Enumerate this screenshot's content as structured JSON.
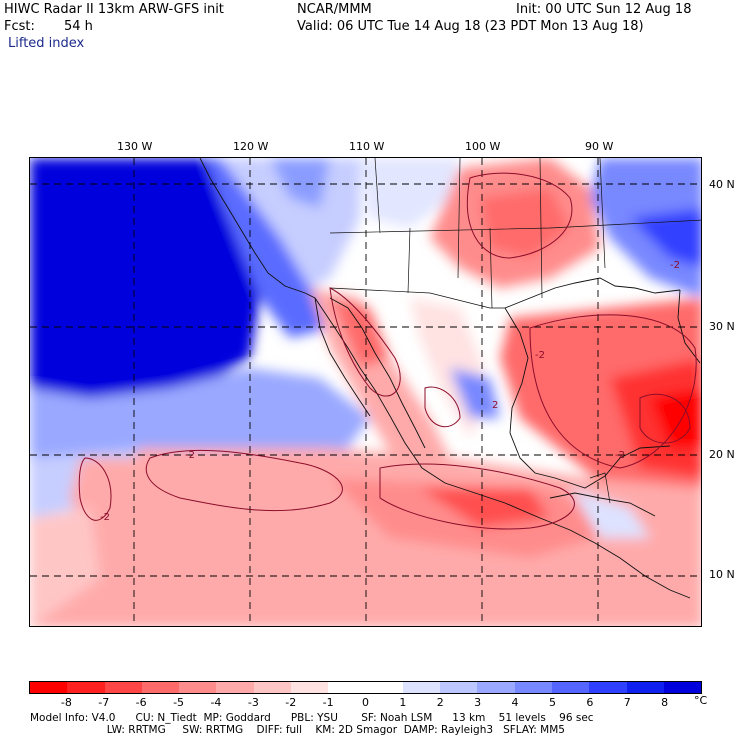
{
  "header": {
    "title": "HIWC Radar II 13km ARW-GFS init",
    "org": "NCAR/MMM",
    "init": "Init: 00 UTC Sun 12 Aug 18",
    "fcst_label": "Fcst:",
    "fcst_value": "54 h",
    "valid": "Valid: 06 UTC Tue 14 Aug 18 (23 PDT Mon 13 Aug 18)",
    "field": "Lifted index"
  },
  "map": {
    "lon_labels": [
      "130 W",
      "120 W",
      "110 W",
      "100 W",
      "90 W"
    ],
    "lat_labels": [
      "40 N",
      "30 N",
      "20 N",
      "10 N"
    ],
    "contour_labels": [
      "-2",
      "-2",
      "2",
      "-2",
      "-2",
      "-2"
    ]
  },
  "colorbar": {
    "ticks": [
      "-8",
      "-7",
      "-6",
      "-5",
      "-4",
      "-3",
      "-2",
      "-1",
      "0",
      "1",
      "2",
      "3",
      "4",
      "5",
      "6",
      "7",
      "8"
    ],
    "unit": "°C",
    "colors": [
      "#ff0000",
      "#ff2020",
      "#ff4646",
      "#ff6a6a",
      "#ff8c8c",
      "#ffaaaa",
      "#ffc6c6",
      "#ffe2e2",
      "#ffffff",
      "#ffffff",
      "#dde2ff",
      "#bcc6ff",
      "#9aa8ff",
      "#7888ff",
      "#5466ff",
      "#3040ff",
      "#1020f0",
      "#0000dd"
    ]
  },
  "model_info": {
    "line1": "Model Info: V4.0      CU: N_Tiedt  MP: Goddard      PBL: YSU       SF: Noah LSM      13 km    51 levels    96 sec",
    "line2": "                       LW: RRTMG     SW: RRTMG    DIFF: full    KM: 2D Smagor  DAMP: Rayleigh3   SFLAY: MM5"
  }
}
